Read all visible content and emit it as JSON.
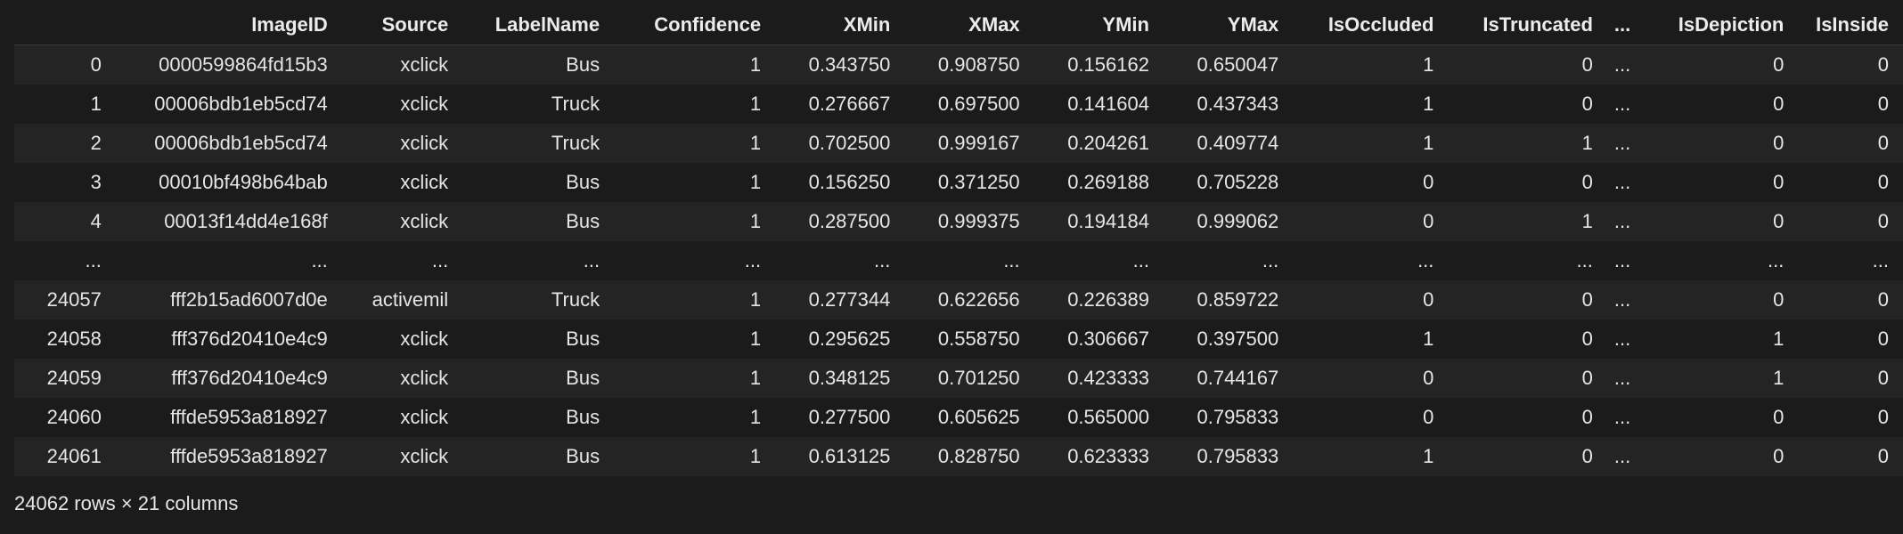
{
  "table": {
    "columns": [
      "",
      "ImageID",
      "Source",
      "LabelName",
      "Confidence",
      "XMin",
      "XMax",
      "YMin",
      "YMax",
      "IsOccluded",
      "IsTruncated",
      "...",
      "IsDepiction",
      "IsInside"
    ],
    "rows": [
      [
        "0",
        "0000599864fd15b3",
        "xclick",
        "Bus",
        "1",
        "0.343750",
        "0.908750",
        "0.156162",
        "0.650047",
        "1",
        "0",
        "...",
        "0",
        "0"
      ],
      [
        "1",
        "00006bdb1eb5cd74",
        "xclick",
        "Truck",
        "1",
        "0.276667",
        "0.697500",
        "0.141604",
        "0.437343",
        "1",
        "0",
        "...",
        "0",
        "0"
      ],
      [
        "2",
        "00006bdb1eb5cd74",
        "xclick",
        "Truck",
        "1",
        "0.702500",
        "0.999167",
        "0.204261",
        "0.409774",
        "1",
        "1",
        "...",
        "0",
        "0"
      ],
      [
        "3",
        "00010bf498b64bab",
        "xclick",
        "Bus",
        "1",
        "0.156250",
        "0.371250",
        "0.269188",
        "0.705228",
        "0",
        "0",
        "...",
        "0",
        "0"
      ],
      [
        "4",
        "00013f14dd4e168f",
        "xclick",
        "Bus",
        "1",
        "0.287500",
        "0.999375",
        "0.194184",
        "0.999062",
        "0",
        "1",
        "...",
        "0",
        "0"
      ],
      [
        "...",
        "...",
        "...",
        "...",
        "...",
        "...",
        "...",
        "...",
        "...",
        "...",
        "...",
        "...",
        "...",
        "..."
      ],
      [
        "24057",
        "fff2b15ad6007d0e",
        "activemil",
        "Truck",
        "1",
        "0.277344",
        "0.622656",
        "0.226389",
        "0.859722",
        "0",
        "0",
        "...",
        "0",
        "0"
      ],
      [
        "24058",
        "fff376d20410e4c9",
        "xclick",
        "Bus",
        "1",
        "0.295625",
        "0.558750",
        "0.306667",
        "0.397500",
        "1",
        "0",
        "...",
        "1",
        "0"
      ],
      [
        "24059",
        "fff376d20410e4c9",
        "xclick",
        "Bus",
        "1",
        "0.348125",
        "0.701250",
        "0.423333",
        "0.744167",
        "0",
        "0",
        "...",
        "1",
        "0"
      ],
      [
        "24060",
        "fffde5953a818927",
        "xclick",
        "Bus",
        "1",
        "0.277500",
        "0.605625",
        "0.565000",
        "0.795833",
        "0",
        "0",
        "...",
        "0",
        "0"
      ],
      [
        "24061",
        "fffde5953a818927",
        "xclick",
        "Bus",
        "1",
        "0.613125",
        "0.828750",
        "0.623333",
        "0.795833",
        "1",
        "0",
        "...",
        "0",
        "0"
      ]
    ]
  },
  "footer": {
    "shape_text": "24062 rows × 21 columns"
  }
}
